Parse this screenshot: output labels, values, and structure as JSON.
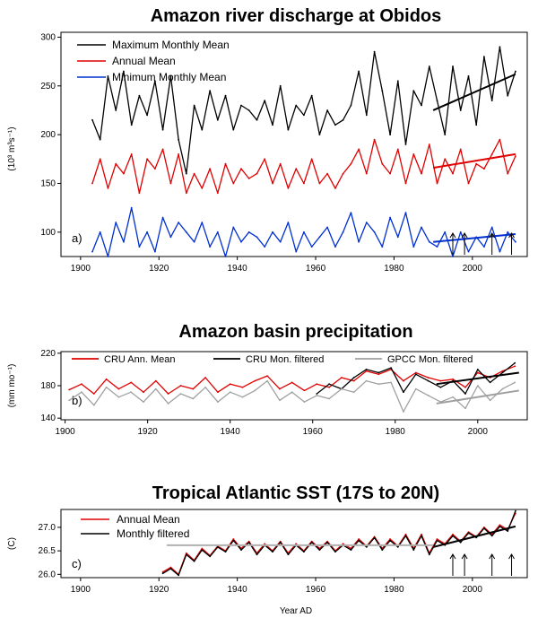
{
  "figure": {
    "xlabel": "Year AD"
  },
  "chart_data": [
    {
      "type": "line",
      "title": "Amazon river discharge at Obidos",
      "panel_label": "a)",
      "ylabel": "(10³ m³s⁻¹)",
      "xlim": [
        1895,
        2014
      ],
      "ylim": [
        75,
        305
      ],
      "x_ticks": [
        1900,
        1920,
        1940,
        1960,
        1980,
        2000
      ],
      "y_ticks": [
        100,
        150,
        200,
        250,
        300
      ],
      "legend_position": "top-left",
      "series": [
        {
          "name": "Maximum Monthly Mean",
          "color": "#000000",
          "x": [
            1903,
            1905,
            1907,
            1909,
            1911,
            1913,
            1915,
            1917,
            1919,
            1921,
            1923,
            1925,
            1927,
            1929,
            1931,
            1933,
            1935,
            1937,
            1939,
            1941,
            1943,
            1945,
            1947,
            1949,
            1951,
            1953,
            1955,
            1957,
            1959,
            1961,
            1963,
            1965,
            1967,
            1969,
            1971,
            1973,
            1975,
            1977,
            1979,
            1981,
            1983,
            1985,
            1987,
            1989,
            1991,
            1993,
            1995,
            1997,
            1999,
            2001,
            2003,
            2005,
            2007,
            2009,
            2011
          ],
          "y": [
            215,
            195,
            260,
            225,
            265,
            210,
            240,
            220,
            255,
            205,
            260,
            195,
            160,
            230,
            205,
            245,
            215,
            240,
            205,
            230,
            225,
            215,
            235,
            210,
            250,
            205,
            230,
            220,
            240,
            200,
            225,
            210,
            215,
            230,
            265,
            220,
            285,
            245,
            200,
            255,
            190,
            245,
            230,
            270,
            235,
            200,
            270,
            225,
            260,
            210,
            280,
            235,
            290,
            240,
            265
          ]
        },
        {
          "name": "Annual Mean",
          "color": "#e00000",
          "x": [
            1903,
            1905,
            1907,
            1909,
            1911,
            1913,
            1915,
            1917,
            1919,
            1921,
            1923,
            1925,
            1927,
            1929,
            1931,
            1933,
            1935,
            1937,
            1939,
            1941,
            1943,
            1945,
            1947,
            1949,
            1951,
            1953,
            1955,
            1957,
            1959,
            1961,
            1963,
            1965,
            1967,
            1969,
            1971,
            1973,
            1975,
            1977,
            1979,
            1981,
            1983,
            1985,
            1987,
            1989,
            1991,
            1993,
            1995,
            1997,
            1999,
            2001,
            2003,
            2005,
            2007,
            2009,
            2011
          ],
          "y": [
            150,
            175,
            145,
            170,
            160,
            180,
            140,
            175,
            165,
            185,
            150,
            180,
            140,
            160,
            145,
            165,
            140,
            170,
            150,
            165,
            155,
            160,
            175,
            150,
            170,
            145,
            165,
            150,
            175,
            150,
            160,
            145,
            160,
            170,
            185,
            160,
            195,
            170,
            160,
            185,
            150,
            180,
            160,
            190,
            150,
            175,
            160,
            185,
            150,
            170,
            165,
            180,
            195,
            160,
            178
          ]
        },
        {
          "name": "Minimum Monthly Mean",
          "color": "#0030d0",
          "x": [
            1903,
            1905,
            1907,
            1909,
            1911,
            1913,
            1915,
            1917,
            1919,
            1921,
            1923,
            1925,
            1927,
            1929,
            1931,
            1933,
            1935,
            1937,
            1939,
            1941,
            1943,
            1945,
            1947,
            1949,
            1951,
            1953,
            1955,
            1957,
            1959,
            1961,
            1963,
            1965,
            1967,
            1969,
            1971,
            1973,
            1975,
            1977,
            1979,
            1981,
            1983,
            1985,
            1987,
            1989,
            1991,
            1993,
            1995,
            1997,
            1999,
            2001,
            2003,
            2005,
            2007,
            2009,
            2011
          ],
          "y": [
            80,
            100,
            75,
            110,
            90,
            125,
            85,
            100,
            80,
            115,
            95,
            110,
            100,
            90,
            110,
            85,
            100,
            75,
            105,
            90,
            100,
            95,
            85,
            100,
            90,
            110,
            80,
            100,
            85,
            95,
            105,
            85,
            100,
            120,
            90,
            110,
            100,
            85,
            115,
            95,
            120,
            85,
            105,
            90,
            85,
            100,
            75,
            100,
            80,
            95,
            85,
            105,
            80,
            100,
            90
          ]
        }
      ],
      "trends": [
        {
          "color": "#000000",
          "x": [
            1990,
            2011
          ],
          "y": [
            225,
            262
          ]
        },
        {
          "color": "#e00000",
          "x": [
            1990,
            2011
          ],
          "y": [
            166,
            180
          ]
        },
        {
          "color": "#0030d0",
          "x": [
            1990,
            2011
          ],
          "y": [
            90,
            98
          ]
        }
      ],
      "arrows_at": [
        1995,
        1998,
        2005,
        2010
      ]
    },
    {
      "type": "line",
      "title": "Amazon basin precipitation",
      "panel_label": "b)",
      "ylabel": "(mm mo⁻¹)",
      "xlim": [
        1899,
        2012
      ],
      "ylim": [
        138,
        222
      ],
      "x_ticks": [
        1900,
        1920,
        1940,
        1960,
        1980,
        2000
      ],
      "y_ticks": [
        140,
        180,
        220
      ],
      "legend_position": "top",
      "series": [
        {
          "name": "CRU Ann. Mean",
          "color": "#e00000",
          "x": [
            1901,
            1904,
            1907,
            1910,
            1913,
            1916,
            1919,
            1922,
            1925,
            1928,
            1931,
            1934,
            1937,
            1940,
            1943,
            1946,
            1949,
            1952,
            1955,
            1958,
            1961,
            1964,
            1967,
            1970,
            1973,
            1976,
            1979,
            1982,
            1985,
            1988,
            1991,
            1994,
            1997,
            2000,
            2003,
            2006,
            2009
          ],
          "y": [
            175,
            182,
            170,
            188,
            176,
            184,
            172,
            186,
            170,
            180,
            176,
            190,
            172,
            182,
            178,
            186,
            192,
            176,
            184,
            174,
            182,
            178,
            190,
            186,
            198,
            194,
            200,
            186,
            196,
            190,
            186,
            188,
            178,
            196,
            190,
            198,
            204
          ]
        },
        {
          "name": "CRU Mon. filtered",
          "color": "#000000",
          "x": [
            1961,
            1964,
            1967,
            1970,
            1973,
            1976,
            1979,
            1982,
            1985,
            1988,
            1991,
            1994,
            1997,
            2000,
            2003,
            2006,
            2009
          ],
          "y": [
            170,
            182,
            176,
            190,
            200,
            196,
            202,
            172,
            194,
            186,
            178,
            186,
            170,
            200,
            184,
            196,
            208
          ]
        },
        {
          "name": "GPCC Mon. filtered",
          "color": "#a0a0a0",
          "x": [
            1901,
            1904,
            1907,
            1910,
            1913,
            1916,
            1919,
            1922,
            1925,
            1928,
            1931,
            1934,
            1937,
            1940,
            1943,
            1946,
            1949,
            1952,
            1955,
            1958,
            1961,
            1964,
            1967,
            1970,
            1973,
            1976,
            1979,
            1982,
            1985,
            1988,
            1991,
            1994,
            1997,
            2000,
            2003,
            2006,
            2009
          ],
          "y": [
            162,
            172,
            156,
            178,
            166,
            172,
            160,
            176,
            158,
            170,
            164,
            178,
            160,
            172,
            166,
            174,
            186,
            162,
            172,
            160,
            168,
            164,
            176,
            172,
            186,
            182,
            184,
            148,
            176,
            168,
            160,
            166,
            152,
            180,
            162,
            176,
            184
          ]
        }
      ],
      "trends": [
        {
          "color": "#000000",
          "x": [
            1990,
            2010
          ],
          "y": [
            182,
            196
          ]
        },
        {
          "color": "#a0a0a0",
          "x": [
            1990,
            2010
          ],
          "y": [
            158,
            174
          ]
        }
      ]
    },
    {
      "type": "line",
      "title": "Tropical Atlantic SST (17S to 20N)",
      "panel_label": "c)",
      "ylabel": "(C)",
      "xlim": [
        1895,
        2014
      ],
      "ylim": [
        25.93,
        27.38
      ],
      "x_ticks": [
        1900,
        1920,
        1940,
        1960,
        1980,
        2000
      ],
      "y_ticks": [
        26.0,
        26.5,
        27.0
      ],
      "legend_position": "top-left",
      "series": [
        {
          "name": "Annual Mean",
          "color": "#e00000",
          "x": [
            1921,
            1923,
            1925,
            1927,
            1929,
            1931,
            1933,
            1935,
            1937,
            1939,
            1941,
            1943,
            1945,
            1947,
            1949,
            1951,
            1953,
            1955,
            1957,
            1959,
            1961,
            1963,
            1965,
            1967,
            1969,
            1971,
            1973,
            1975,
            1977,
            1979,
            1981,
            1983,
            1985,
            1987,
            1989,
            1991,
            1993,
            1995,
            1997,
            1999,
            2001,
            2003,
            2005,
            2007,
            2009,
            2011
          ],
          "y": [
            26.05,
            26.15,
            26.0,
            26.45,
            26.3,
            26.55,
            26.4,
            26.6,
            26.5,
            26.75,
            26.55,
            26.7,
            26.45,
            26.65,
            26.5,
            26.7,
            26.45,
            26.65,
            26.5,
            26.7,
            26.55,
            26.7,
            26.5,
            26.65,
            26.55,
            26.75,
            26.6,
            26.8,
            26.55,
            26.75,
            26.6,
            26.85,
            26.55,
            26.85,
            26.45,
            26.75,
            26.65,
            26.85,
            26.7,
            26.9,
            26.8,
            27.0,
            26.85,
            27.05,
            26.95,
            27.3
          ]
        },
        {
          "name": "Monthly filtered",
          "color": "#000000",
          "x": [
            1921,
            1923,
            1925,
            1927,
            1929,
            1931,
            1933,
            1935,
            1937,
            1939,
            1941,
            1943,
            1945,
            1947,
            1949,
            1951,
            1953,
            1955,
            1957,
            1959,
            1961,
            1963,
            1965,
            1967,
            1969,
            1971,
            1973,
            1975,
            1977,
            1979,
            1981,
            1983,
            1985,
            1987,
            1989,
            1991,
            1993,
            1995,
            1997,
            1999,
            2001,
            2003,
            2005,
            2007,
            2009,
            2011
          ],
          "y": [
            26.02,
            26.12,
            25.98,
            26.42,
            26.28,
            26.52,
            26.38,
            26.58,
            26.48,
            26.72,
            26.52,
            26.68,
            26.42,
            26.62,
            26.48,
            26.68,
            26.42,
            26.62,
            26.48,
            26.68,
            26.52,
            26.68,
            26.48,
            26.62,
            26.52,
            26.72,
            26.58,
            26.78,
            26.52,
            26.72,
            26.58,
            26.82,
            26.52,
            26.82,
            26.42,
            26.72,
            26.62,
            26.82,
            26.68,
            26.88,
            26.78,
            26.98,
            26.82,
            27.02,
            26.92,
            27.35
          ]
        }
      ],
      "trends": [
        {
          "color": "#000000",
          "x": [
            1990,
            2011
          ],
          "y": [
            26.58,
            27.02
          ]
        },
        {
          "color": "#b0b0b0",
          "x": [
            1922,
            1990
          ],
          "y": [
            26.62,
            26.62
          ]
        }
      ],
      "arrows_at": [
        1995,
        1998,
        2005,
        2010
      ]
    }
  ]
}
